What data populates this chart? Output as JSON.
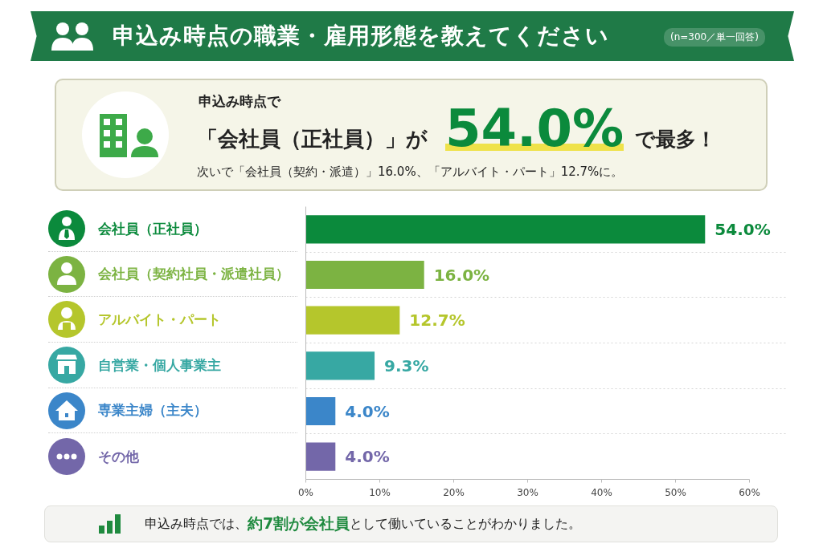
{
  "chart_data": {
    "type": "bar",
    "orientation": "horizontal",
    "title": "申込み時点の職業・雇用形態を教えてください",
    "subtitle": "(n=300／単一回答)",
    "categories": [
      "会社員（正社員）",
      "会社員（契約社員・派遣社員）",
      "アルバイト・パート",
      "自営業・個人事業主",
      "専業主婦（主夫）",
      "その他"
    ],
    "values": [
      54.0,
      16.0,
      12.7,
      9.3,
      4.0,
      4.0
    ],
    "colors": [
      "#0b8a3c",
      "#7cb342",
      "#b5c62c",
      "#37a8a3",
      "#3b86c9",
      "#7367a9"
    ],
    "value_labels": [
      "54.0%",
      "16.0%",
      "12.7%",
      "9.3%",
      "4.0%",
      "4.0%"
    ],
    "xlim": [
      0,
      60
    ],
    "xticks": [
      {
        "value": 0,
        "label": "0%"
      },
      {
        "value": 10,
        "label": "10%"
      },
      {
        "value": 20,
        "label": "20%"
      },
      {
        "value": 30,
        "label": "30%"
      },
      {
        "value": 40,
        "label": "40%"
      },
      {
        "value": 50,
        "label": "50%"
      },
      {
        "value": 60,
        "label": "60%"
      }
    ],
    "grid": "y",
    "annotations": [
      "申込み時点で",
      "「会社員（正社員）」が",
      "54.0%",
      "で最多！",
      "次いで「会社員（契約・派遣）」16.0%、「アルバイト・パート」12.7%に。",
      "申込み時点では、",
      "約7割が会社員",
      "として働いていることがわかりました。"
    ]
  }
}
